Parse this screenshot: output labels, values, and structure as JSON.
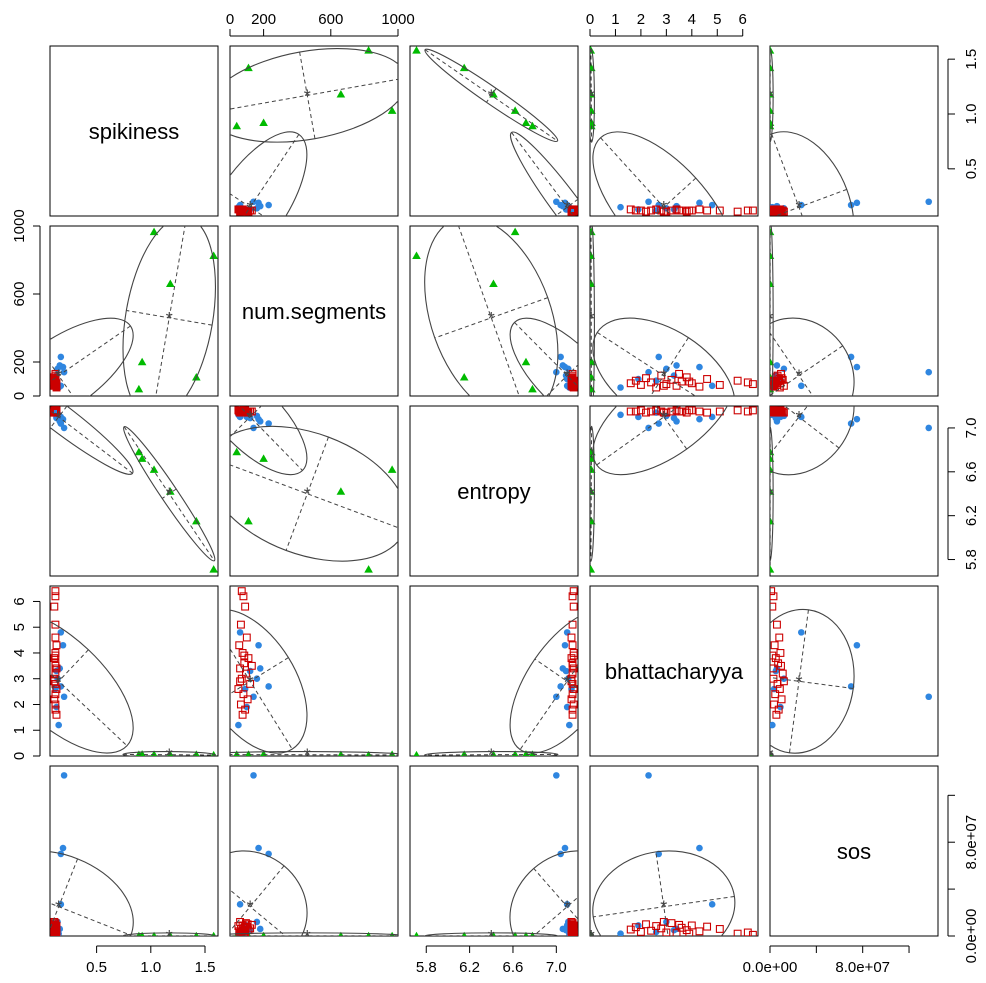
{
  "chart_data": {
    "type": "scatter",
    "variables": [
      "spikiness",
      "num.segments",
      "entropy",
      "bhattacharyya",
      "sos"
    ],
    "ranges": {
      "spikiness": [
        0.07,
        1.62
      ],
      "num.segments": [
        0,
        1000
      ],
      "entropy": [
        5.65,
        7.2
      ],
      "bhattacharyya": [
        0,
        6.6
      ],
      "sos": [
        0,
        145000000.0
      ]
    },
    "ticks": {
      "spikiness": {
        "values": [
          0.5,
          1.0,
          1.5
        ],
        "labels": [
          "0.5",
          "1.0",
          "1.5"
        ]
      },
      "num.segments": {
        "values": [
          0,
          200,
          600,
          1000
        ],
        "labels": [
          "0",
          "200",
          "600",
          "1000"
        ]
      },
      "entropy": {
        "values": [
          5.8,
          6.2,
          6.6,
          7.0
        ],
        "labels": [
          "5.8",
          "6.2",
          "6.6",
          "7.0"
        ]
      },
      "bhattacharyya": {
        "values": [
          0,
          1,
          2,
          3,
          4,
          5,
          6
        ],
        "labels": [
          "0",
          "1",
          "2",
          "3",
          "4",
          "5",
          "6"
        ]
      },
      "sos": {
        "values": [
          0,
          40000000,
          80000000,
          120000000
        ],
        "labels": [
          "0.0e+00",
          "",
          "8.0e+07",
          ""
        ]
      }
    },
    "axes": {
      "top": [
        1,
        3
      ],
      "bottom": [
        0,
        2,
        4
      ],
      "left": [
        1,
        3
      ],
      "right": [
        0,
        2,
        4
      ]
    },
    "grid": false,
    "series": [
      {
        "group": "green triangles",
        "color": "#00bb00",
        "marker": "triangle",
        "points": [
          {
            "spikiness": 1.58,
            "num.segments": 825,
            "entropy": 5.71,
            "bhattacharyya": 0.03,
            "sos": 100
          },
          {
            "spikiness": 1.42,
            "num.segments": 110,
            "entropy": 6.15,
            "bhattacharyya": 0.05,
            "sos": 100
          },
          {
            "spikiness": 1.18,
            "num.segments": 660,
            "entropy": 6.42,
            "bhattacharyya": 0.04,
            "sos": 100
          },
          {
            "spikiness": 1.03,
            "num.segments": 965,
            "entropy": 6.62,
            "bhattacharyya": 0.05,
            "sos": 100
          },
          {
            "spikiness": 0.92,
            "num.segments": 200,
            "entropy": 6.72,
            "bhattacharyya": 0.06,
            "sos": 100
          },
          {
            "spikiness": 0.89,
            "num.segments": 40,
            "entropy": 6.78,
            "bhattacharyya": 0.05,
            "sos": 100
          }
        ]
      },
      {
        "group": "blue circles",
        "color": "#2f86e0",
        "marker": "circle",
        "points": [
          {
            "spikiness": 0.2,
            "num.segments": 140,
            "entropy": 7.0,
            "bhattacharyya": 2.3,
            "sos": 137000000
          },
          {
            "spikiness": 0.17,
            "num.segments": 230,
            "entropy": 7.04,
            "bhattacharyya": 2.7,
            "sos": 70000000
          },
          {
            "spikiness": 0.17,
            "num.segments": 60,
            "entropy": 7.1,
            "bhattacharyya": 4.8,
            "sos": 27000000
          },
          {
            "spikiness": 0.19,
            "num.segments": 170,
            "entropy": 7.08,
            "bhattacharyya": 4.3,
            "sos": 75000000
          },
          {
            "spikiness": 0.15,
            "num.segments": 50,
            "entropy": 7.12,
            "bhattacharyya": 1.2,
            "sos": 2000000
          },
          {
            "spikiness": 0.13,
            "num.segments": 100,
            "entropy": 7.1,
            "bhattacharyya": 1.9,
            "sos": 9000000
          },
          {
            "spikiness": 0.13,
            "num.segments": 120,
            "entropy": 7.09,
            "bhattacharyya": 3.3,
            "sos": 5000000
          },
          {
            "spikiness": 0.12,
            "num.segments": 90,
            "entropy": 7.14,
            "bhattacharyya": 2.6,
            "sos": 3500000
          },
          {
            "spikiness": 0.14,
            "num.segments": 160,
            "entropy": 7.11,
            "bhattacharyya": 3.0,
            "sos": 12000000
          },
          {
            "spikiness": 0.16,
            "num.segments": 180,
            "entropy": 7.06,
            "bhattacharyya": 3.4,
            "sos": 6000000
          }
        ]
      },
      {
        "group": "red squares",
        "color": "#cc0000",
        "marker": "square",
        "points": [
          {
            "spikiness": 0.12,
            "num.segments": 70,
            "entropy": 7.16,
            "bhattacharyya": 6.4,
            "sos": 1000000
          },
          {
            "spikiness": 0.12,
            "num.segments": 80,
            "entropy": 7.15,
            "bhattacharyya": 6.2,
            "sos": 3000000
          },
          {
            "spikiness": 0.11,
            "num.segments": 90,
            "entropy": 7.16,
            "bhattacharyya": 5.8,
            "sos": 2000000
          },
          {
            "spikiness": 0.12,
            "num.segments": 65,
            "entropy": 7.15,
            "bhattacharyya": 5.1,
            "sos": 6000000
          },
          {
            "spikiness": 0.12,
            "num.segments": 100,
            "entropy": 7.14,
            "bhattacharyya": 4.6,
            "sos": 8000000
          },
          {
            "spikiness": 0.13,
            "num.segments": 55,
            "entropy": 7.15,
            "bhattacharyya": 4.3,
            "sos": 4000000
          },
          {
            "spikiness": 0.12,
            "num.segments": 75,
            "entropy": 7.16,
            "bhattacharyya": 4.0,
            "sos": 9000000
          },
          {
            "spikiness": 0.11,
            "num.segments": 110,
            "entropy": 7.14,
            "bhattacharyya": 3.8,
            "sos": 5000000
          },
          {
            "spikiness": 0.12,
            "num.segments": 85,
            "entropy": 7.15,
            "bhattacharyya": 3.6,
            "sos": 7000000
          },
          {
            "spikiness": 0.13,
            "num.segments": 60,
            "entropy": 7.16,
            "bhattacharyya": 3.4,
            "sos": 2500000
          },
          {
            "spikiness": 0.12,
            "num.segments": 95,
            "entropy": 7.15,
            "bhattacharyya": 3.2,
            "sos": 11000000
          },
          {
            "spikiness": 0.11,
            "num.segments": 70,
            "entropy": 7.14,
            "bhattacharyya": 3.0,
            "sos": 3000000
          },
          {
            "spikiness": 0.12,
            "num.segments": 120,
            "entropy": 7.15,
            "bhattacharyya": 2.8,
            "sos": 6500000
          },
          {
            "spikiness": 0.13,
            "num.segments": 50,
            "entropy": 7.16,
            "bhattacharyya": 2.6,
            "sos": 8500000
          },
          {
            "spikiness": 0.12,
            "num.segments": 80,
            "entropy": 7.15,
            "bhattacharyya": 2.4,
            "sos": 4500000
          },
          {
            "spikiness": 0.11,
            "num.segments": 105,
            "entropy": 7.14,
            "bhattacharyya": 2.2,
            "sos": 10000000
          },
          {
            "spikiness": 0.12,
            "num.segments": 65,
            "entropy": 7.16,
            "bhattacharyya": 2.0,
            "sos": 3500000
          },
          {
            "spikiness": 0.12,
            "num.segments": 90,
            "entropy": 7.15,
            "bhattacharyya": 1.8,
            "sos": 7500000
          },
          {
            "spikiness": 0.13,
            "num.segments": 75,
            "entropy": 7.15,
            "bhattacharyya": 1.6,
            "sos": 5500000
          },
          {
            "spikiness": 0.12,
            "num.segments": 85,
            "entropy": 7.16,
            "bhattacharyya": 3.9,
            "sos": 2000000
          },
          {
            "spikiness": 0.11,
            "num.segments": 60,
            "entropy": 7.14,
            "bhattacharyya": 2.9,
            "sos": 12000000
          },
          {
            "spikiness": 0.12,
            "num.segments": 130,
            "entropy": 7.15,
            "bhattacharyya": 3.5,
            "sos": 9500000
          }
        ]
      }
    ],
    "ellipses": [
      {
        "group": "green triangles",
        "center": {
          "spikiness": 1.17,
          "num.segments": 460,
          "entropy": 6.4,
          "bhattacharyya": 0.05,
          "sos": 100
        }
      },
      {
        "group": "all",
        "center": {
          "spikiness": 0.15,
          "num.segments": 120,
          "entropy": 7.1,
          "bhattacharyya": 2.9,
          "sos": 25000000
        }
      }
    ]
  }
}
